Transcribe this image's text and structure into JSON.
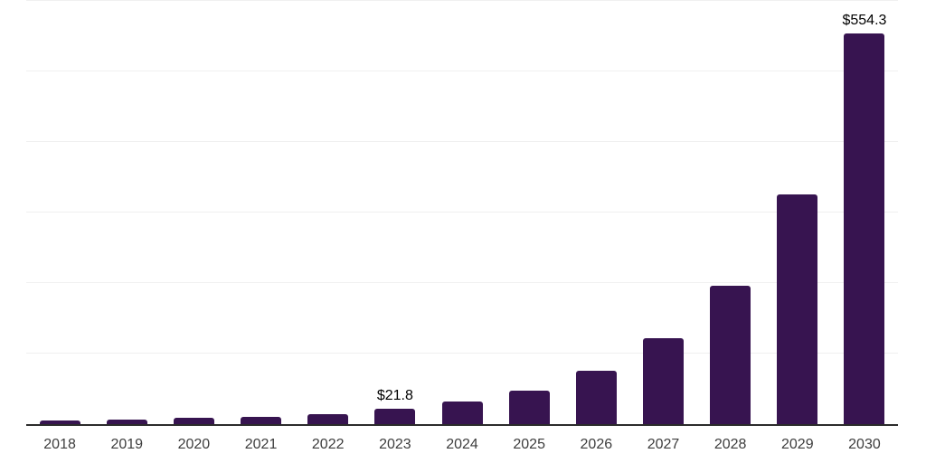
{
  "chart_data": {
    "type": "bar",
    "title": "",
    "xlabel": "",
    "ylabel": "",
    "categories": [
      "2018",
      "2019",
      "2020",
      "2021",
      "2022",
      "2023",
      "2024",
      "2025",
      "2026",
      "2027",
      "2028",
      "2029",
      "2030"
    ],
    "values": [
      4.8,
      6.4,
      9.0,
      10.7,
      14.5,
      21.8,
      32.3,
      47.2,
      75.5,
      121.2,
      196.2,
      325.8,
      554.3
    ],
    "value_prefix": "$",
    "value_labels": {
      "2023": "$21.8",
      "2030": "$554.3"
    },
    "ylim": [
      0,
      600
    ],
    "grid_step": 100,
    "grid": "horizontal-only",
    "y_axis_tick_labels_visible": false,
    "legend": "none",
    "colors": {
      "bar": "#371450",
      "axis": "#2b2b2b",
      "grid": "#f0f0f0",
      "value_label": "#000000",
      "tick_label": "#3d3d3d",
      "background": "#ffffff"
    }
  }
}
